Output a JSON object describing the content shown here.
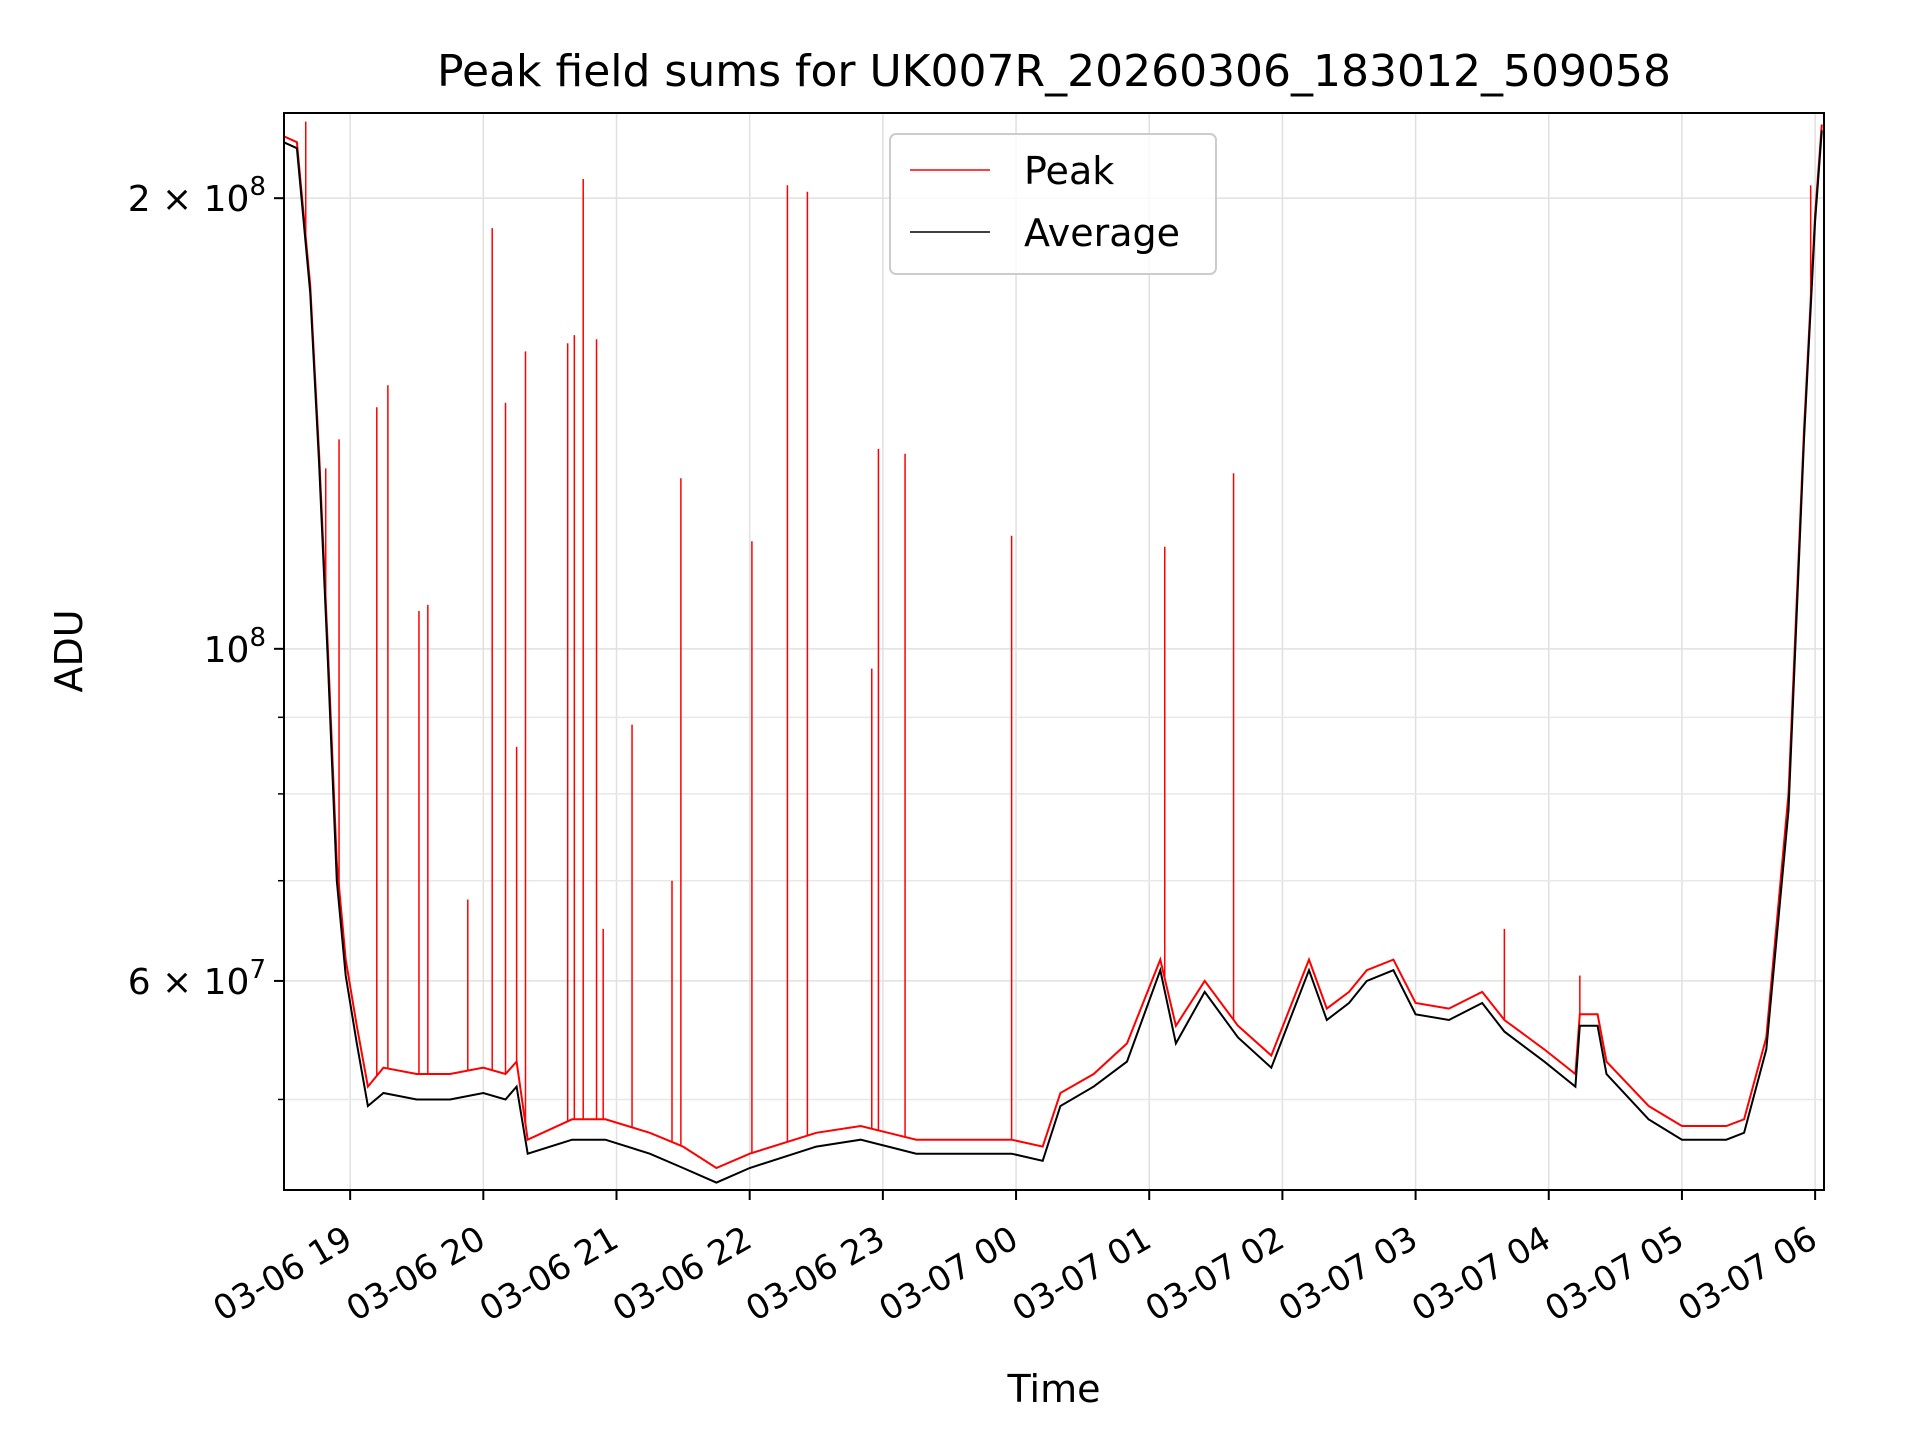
{
  "chart_data": {
    "type": "line",
    "title": "Peak field sums for UK007R_20260306_183012_509058",
    "xlabel": "Time",
    "ylabel": "ADU",
    "y_scale": "log",
    "grid": true,
    "legend_position": "upper center",
    "xlim": [
      "2026-03-06 18:30:12",
      "2026-03-07 06:04:00"
    ],
    "ylim": [
      43500000,
      228000000
    ],
    "x_ticks": [
      {
        "t": "2026-03-06 19:00",
        "label": "03-06 19"
      },
      {
        "t": "2026-03-06 20:00",
        "label": "03-06 20"
      },
      {
        "t": "2026-03-06 21:00",
        "label": "03-06 21"
      },
      {
        "t": "2026-03-06 22:00",
        "label": "03-06 22"
      },
      {
        "t": "2026-03-06 23:00",
        "label": "03-06 23"
      },
      {
        "t": "2026-03-07 00:00",
        "label": "03-07 00"
      },
      {
        "t": "2026-03-07 01:00",
        "label": "03-07 01"
      },
      {
        "t": "2026-03-07 02:00",
        "label": "03-07 02"
      },
      {
        "t": "2026-03-07 03:00",
        "label": "03-07 03"
      },
      {
        "t": "2026-03-07 04:00",
        "label": "03-07 04"
      },
      {
        "t": "2026-03-07 05:00",
        "label": "03-07 05"
      },
      {
        "t": "2026-03-07 06:00",
        "label": "03-07 06"
      }
    ],
    "y_ticks": [
      {
        "v": 200000000,
        "base": "2 × 10",
        "exp": "8"
      },
      {
        "v": 100000000,
        "base": "10",
        "exp": "8"
      },
      {
        "v": 60000000,
        "base": "6 × 10",
        "exp": "7"
      }
    ],
    "y_minor_ticks": [
      50000000,
      70000000,
      80000000,
      90000000
    ],
    "series": [
      {
        "name": "Peak",
        "color": "#ff0000",
        "points": [
          [
            "2026-03-06 18:30",
            220000000
          ],
          [
            "2026-03-06 18:36",
            218000000
          ],
          [
            "2026-03-06 18:42",
            175000000
          ],
          [
            "2026-03-06 18:46",
            135000000
          ],
          [
            "2026-03-06 18:50",
            100000000
          ],
          [
            "2026-03-06 18:54",
            72000000
          ],
          [
            "2026-03-06 18:58",
            62000000
          ],
          [
            "2026-03-06 19:03",
            56000000
          ],
          [
            "2026-03-06 19:08",
            51000000
          ],
          [
            "2026-03-06 19:15",
            52500000
          ],
          [
            "2026-03-06 19:30",
            52000000
          ],
          [
            "2026-03-06 19:45",
            52000000
          ],
          [
            "2026-03-06 20:00",
            52500000
          ],
          [
            "2026-03-06 20:10",
            52000000
          ],
          [
            "2026-03-06 20:15",
            53000000
          ],
          [
            "2026-03-06 20:20",
            47000000
          ],
          [
            "2026-03-06 20:40",
            48500000
          ],
          [
            "2026-03-06 20:55",
            48500000
          ],
          [
            "2026-03-06 21:15",
            47500000
          ],
          [
            "2026-03-06 21:30",
            46500000
          ],
          [
            "2026-03-06 21:45",
            45000000
          ],
          [
            "2026-03-06 22:00",
            46000000
          ],
          [
            "2026-03-06 22:30",
            47500000
          ],
          [
            "2026-03-06 22:50",
            48000000
          ],
          [
            "2026-03-06 23:15",
            47000000
          ],
          [
            "2026-03-06 23:40",
            47000000
          ],
          [
            "2026-03-06 23:58",
            47000000
          ],
          [
            "2026-03-07 00:12",
            46500000
          ],
          [
            "2026-03-07 00:20",
            50500000
          ],
          [
            "2026-03-07 00:35",
            52000000
          ],
          [
            "2026-03-07 00:50",
            54500000
          ],
          [
            "2026-03-07 01:05",
            62000000
          ],
          [
            "2026-03-07 01:12",
            56000000
          ],
          [
            "2026-03-07 01:25",
            60000000
          ],
          [
            "2026-03-07 01:40",
            56000000
          ],
          [
            "2026-03-07 01:55",
            53500000
          ],
          [
            "2026-03-07 02:12",
            62000000
          ],
          [
            "2026-03-07 02:20",
            57500000
          ],
          [
            "2026-03-07 02:30",
            59000000
          ],
          [
            "2026-03-07 02:38",
            61000000
          ],
          [
            "2026-03-07 02:50",
            62000000
          ],
          [
            "2026-03-07 03:00",
            58000000
          ],
          [
            "2026-03-07 03:15",
            57500000
          ],
          [
            "2026-03-07 03:30",
            59000000
          ],
          [
            "2026-03-07 03:40",
            56500000
          ],
          [
            "2026-03-07 03:58",
            54000000
          ],
          [
            "2026-03-07 04:12",
            52000000
          ],
          [
            "2026-03-07 04:14",
            57000000
          ],
          [
            "2026-03-07 04:22",
            57000000
          ],
          [
            "2026-03-07 04:26",
            53000000
          ],
          [
            "2026-03-07 04:45",
            49500000
          ],
          [
            "2026-03-07 05:00",
            48000000
          ],
          [
            "2026-03-07 05:10",
            48000000
          ],
          [
            "2026-03-07 05:20",
            48000000
          ],
          [
            "2026-03-07 05:28",
            48500000
          ],
          [
            "2026-03-07 05:38",
            55000000
          ],
          [
            "2026-03-07 05:48",
            80000000
          ],
          [
            "2026-03-07 05:55",
            140000000
          ],
          [
            "2026-03-07 06:00",
            195000000
          ],
          [
            "2026-03-07 06:03",
            224000000
          ]
        ],
        "spikes": [
          [
            "2026-03-06 18:40",
            225000000
          ],
          [
            "2026-03-06 18:49",
            132000000
          ],
          [
            "2026-03-06 18:55",
            138000000
          ],
          [
            "2026-03-06 19:12",
            145000000
          ],
          [
            "2026-03-06 19:17",
            150000000
          ],
          [
            "2026-03-06 19:31",
            106000000
          ],
          [
            "2026-03-06 19:35",
            107000000
          ],
          [
            "2026-03-06 19:53",
            68000000
          ],
          [
            "2026-03-06 20:04",
            191000000
          ],
          [
            "2026-03-06 20:10",
            146000000
          ],
          [
            "2026-03-06 20:15",
            86000000
          ],
          [
            "2026-03-06 20:19",
            158000000
          ],
          [
            "2026-03-06 20:38",
            160000000
          ],
          [
            "2026-03-06 20:41",
            162000000
          ],
          [
            "2026-03-06 20:45",
            206000000
          ],
          [
            "2026-03-06 20:51",
            161000000
          ],
          [
            "2026-03-06 20:54",
            65000000
          ],
          [
            "2026-03-06 21:07",
            89000000
          ],
          [
            "2026-03-06 21:25",
            70000000
          ],
          [
            "2026-03-06 21:29",
            130000000
          ],
          [
            "2026-03-06 22:01",
            118000000
          ],
          [
            "2026-03-06 22:17",
            204000000
          ],
          [
            "2026-03-06 22:26",
            202000000
          ],
          [
            "2026-03-06 22:55",
            97000000
          ],
          [
            "2026-03-06 22:58",
            136000000
          ],
          [
            "2026-03-06 23:10",
            135000000
          ],
          [
            "2026-03-06 23:58",
            119000000
          ],
          [
            "2026-03-07 01:07",
            117000000
          ],
          [
            "2026-03-07 01:38",
            131000000
          ],
          [
            "2026-03-07 03:40",
            65000000
          ],
          [
            "2026-03-07 04:14",
            60500000
          ],
          [
            "2026-03-07 05:58",
            204000000
          ]
        ]
      },
      {
        "name": "Average",
        "color": "#000000",
        "points": [
          [
            "2026-03-06 18:30",
            218000000
          ],
          [
            "2026-03-06 18:36",
            216000000
          ],
          [
            "2026-03-06 18:42",
            173000000
          ],
          [
            "2026-03-06 18:46",
            133000000
          ],
          [
            "2026-03-06 18:50",
            98000000
          ],
          [
            "2026-03-06 18:54",
            70000000
          ],
          [
            "2026-03-06 18:58",
            60500000
          ],
          [
            "2026-03-06 19:03",
            54500000
          ],
          [
            "2026-03-06 19:08",
            49500000
          ],
          [
            "2026-03-06 19:15",
            50500000
          ],
          [
            "2026-03-06 19:30",
            50000000
          ],
          [
            "2026-03-06 19:45",
            50000000
          ],
          [
            "2026-03-06 20:00",
            50500000
          ],
          [
            "2026-03-06 20:10",
            50000000
          ],
          [
            "2026-03-06 20:15",
            51000000
          ],
          [
            "2026-03-06 20:20",
            46000000
          ],
          [
            "2026-03-06 20:40",
            47000000
          ],
          [
            "2026-03-06 20:55",
            47000000
          ],
          [
            "2026-03-06 21:15",
            46000000
          ],
          [
            "2026-03-06 21:30",
            45000000
          ],
          [
            "2026-03-06 21:45",
            44000000
          ],
          [
            "2026-03-06 22:00",
            45000000
          ],
          [
            "2026-03-06 22:30",
            46500000
          ],
          [
            "2026-03-06 22:50",
            47000000
          ],
          [
            "2026-03-06 23:15",
            46000000
          ],
          [
            "2026-03-06 23:40",
            46000000
          ],
          [
            "2026-03-06 23:58",
            46000000
          ],
          [
            "2026-03-07 00:12",
            45500000
          ],
          [
            "2026-03-07 00:20",
            49500000
          ],
          [
            "2026-03-07 00:35",
            51000000
          ],
          [
            "2026-03-07 00:50",
            53000000
          ],
          [
            "2026-03-07 01:05",
            61000000
          ],
          [
            "2026-03-07 01:12",
            54500000
          ],
          [
            "2026-03-07 01:25",
            59000000
          ],
          [
            "2026-03-07 01:40",
            55000000
          ],
          [
            "2026-03-07 01:55",
            52500000
          ],
          [
            "2026-03-07 02:12",
            61000000
          ],
          [
            "2026-03-07 02:20",
            56500000
          ],
          [
            "2026-03-07 02:30",
            58000000
          ],
          [
            "2026-03-07 02:38",
            60000000
          ],
          [
            "2026-03-07 02:50",
            61000000
          ],
          [
            "2026-03-07 03:00",
            57000000
          ],
          [
            "2026-03-07 03:15",
            56500000
          ],
          [
            "2026-03-07 03:30",
            58000000
          ],
          [
            "2026-03-07 03:40",
            55500000
          ],
          [
            "2026-03-07 03:58",
            53000000
          ],
          [
            "2026-03-07 04:12",
            51000000
          ],
          [
            "2026-03-07 04:14",
            56000000
          ],
          [
            "2026-03-07 04:22",
            56000000
          ],
          [
            "2026-03-07 04:26",
            52000000
          ],
          [
            "2026-03-07 04:45",
            48500000
          ],
          [
            "2026-03-07 05:00",
            47000000
          ],
          [
            "2026-03-07 05:10",
            47000000
          ],
          [
            "2026-03-07 05:20",
            47000000
          ],
          [
            "2026-03-07 05:28",
            47500000
          ],
          [
            "2026-03-07 05:38",
            54000000
          ],
          [
            "2026-03-07 05:48",
            78000000
          ],
          [
            "2026-03-07 05:55",
            138000000
          ],
          [
            "2026-03-07 06:00",
            193000000
          ],
          [
            "2026-03-07 06:03",
            222000000
          ]
        ]
      }
    ]
  }
}
